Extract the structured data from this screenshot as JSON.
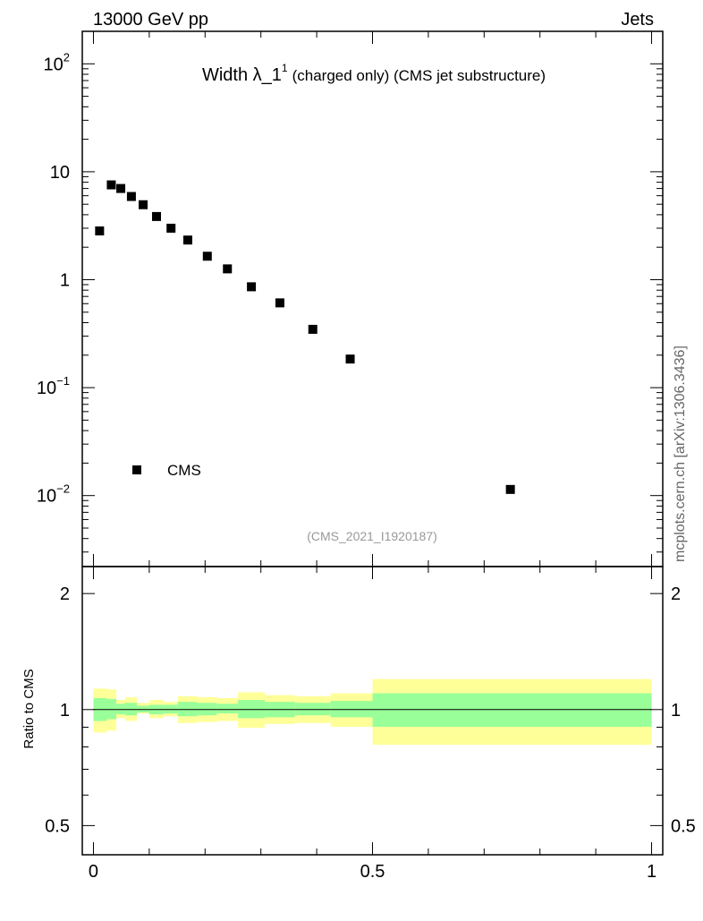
{
  "header": {
    "left": "13000 GeV pp",
    "right": "Jets"
  },
  "side_label": "mcplots.cern.ch [arXiv:1306.3436]",
  "analysis_id": "(CMS_2021_I1920187)",
  "colors": {
    "yellow_band": "#ffff99",
    "green_band": "#99ff99",
    "marker": "#000000"
  },
  "chart_data": [
    {
      "type": "scatter",
      "title_main": "Width λ_1",
      "title_sup": "1",
      "title_rest": "(charged only) (CMS jet substructure)",
      "yscale": "log",
      "xlim": [
        -0.02,
        1.02
      ],
      "ylim": [
        0.0022,
        200
      ],
      "yticks": [
        {
          "v": 100,
          "base": "10",
          "exp": "2"
        },
        {
          "v": 10,
          "base": "10",
          "exp": ""
        },
        {
          "v": 1,
          "base": "1",
          "exp": ""
        },
        {
          "v": 0.1,
          "base": "10",
          "exp": "−1"
        },
        {
          "v": 0.01,
          "base": "10",
          "exp": "−2"
        }
      ],
      "legend": {
        "label": "CMS",
        "position": "bottom-left"
      },
      "series": [
        {
          "name": "CMS",
          "x": [
            0.011,
            0.032,
            0.049,
            0.068,
            0.089,
            0.113,
            0.139,
            0.169,
            0.204,
            0.24,
            0.283,
            0.334,
            0.393,
            0.46,
            0.747
          ],
          "y": [
            2.83,
            7.56,
            7.0,
            5.9,
            4.95,
            3.85,
            3.0,
            2.33,
            1.65,
            1.26,
            0.86,
            0.61,
            0.347,
            0.184,
            0.0114
          ]
        }
      ]
    },
    {
      "type": "area",
      "ylabel": "Ratio to CMS",
      "yscale": "log",
      "ylim": [
        0.42,
        2.35
      ],
      "xlim": [
        -0.02,
        1.02
      ],
      "yticks": [
        {
          "v": 2,
          "label": "2"
        },
        {
          "v": 1,
          "label": "1"
        },
        {
          "v": 0.5,
          "label": "0.5"
        }
      ],
      "xticks": [
        {
          "v": 0,
          "label": "0"
        },
        {
          "v": 0.5,
          "label": "0.5"
        },
        {
          "v": 1,
          "label": "1"
        }
      ],
      "bin_edges": [
        0,
        0.024,
        0.041,
        0.057,
        0.078,
        0.1,
        0.126,
        0.151,
        0.186,
        0.221,
        0.259,
        0.307,
        0.361,
        0.425,
        0.5,
        1.0
      ],
      "yellow_hi": [
        1.134,
        1.128,
        1.059,
        1.077,
        1.041,
        1.059,
        1.047,
        1.083,
        1.077,
        1.071,
        1.109,
        1.09,
        1.083,
        1.102,
        1.2
      ],
      "yellow_lo": [
        0.872,
        0.882,
        0.95,
        0.934,
        0.977,
        0.95,
        0.961,
        0.923,
        0.928,
        0.934,
        0.897,
        0.918,
        0.923,
        0.902,
        0.81
      ],
      "green_hi": [
        1.071,
        1.065,
        1.035,
        1.041,
        1.023,
        1.029,
        1.029,
        1.047,
        1.041,
        1.035,
        1.059,
        1.047,
        1.041,
        1.053,
        1.102
      ],
      "green_lo": [
        0.934,
        0.944,
        0.972,
        0.966,
        0.983,
        0.972,
        0.977,
        0.961,
        0.966,
        0.977,
        0.95,
        0.955,
        0.966,
        0.955,
        0.902
      ]
    }
  ]
}
